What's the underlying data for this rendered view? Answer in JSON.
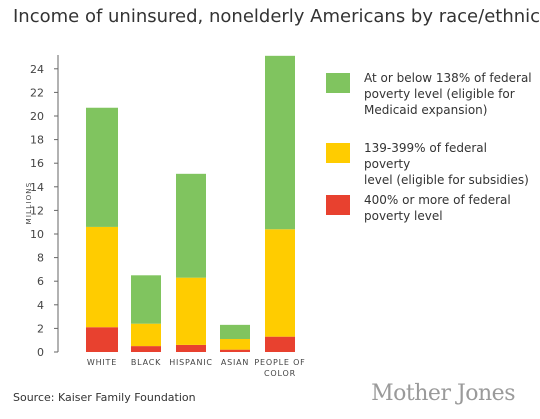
{
  "chart_data": {
    "type": "bar",
    "stacked": true,
    "title": "Income of uninsured, nonelderly Americans by race/ethnicity",
    "ylabel": "MILLIONS",
    "ylim": [
      0,
      25
    ],
    "yticks": [
      0,
      2,
      4,
      6,
      8,
      10,
      12,
      14,
      16,
      18,
      20,
      22,
      24
    ],
    "grid": false,
    "legend_position": "right",
    "categories": [
      [
        "WHITE"
      ],
      [
        "BLACK"
      ],
      [
        "HISPANIC"
      ],
      [
        "ASIAN"
      ],
      [
        "PEOPLE OF",
        "COLOR"
      ]
    ],
    "series": [
      {
        "name": "400% or more of federal poverty level",
        "color": "#e8412f",
        "values": [
          2.1,
          0.5,
          0.6,
          0.2,
          1.3
        ]
      },
      {
        "name": "139-399% of federal poverty level (eligible for subsidies)",
        "color": "#ffcc00",
        "values": [
          8.5,
          1.9,
          5.7,
          0.9,
          9.1
        ]
      },
      {
        "name": "At or below 138% of federal poverty level (eligible for Medicaid expansion)",
        "color": "#80c45f",
        "values": [
          10.1,
          4.1,
          8.8,
          1.2,
          14.7
        ]
      }
    ]
  },
  "legend": [
    {
      "lines": [
        "At or below 138% of federal",
        "poverty level (eligible for",
        "Medicaid expansion)"
      ],
      "color": "#80c45f"
    },
    {
      "lines": [
        "139-399% of federal poverty",
        "level (eligible for subsidies)"
      ],
      "color": "#ffcc00"
    },
    {
      "lines": [
        "400% or more of federal",
        "poverty level"
      ],
      "color": "#e8412f"
    }
  ],
  "source": "Source: Kaiser Family Foundation",
  "logo": "Mother Jones"
}
